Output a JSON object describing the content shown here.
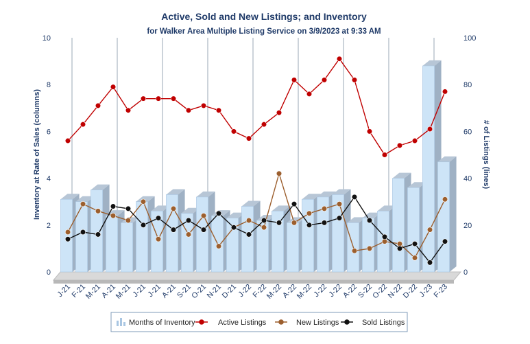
{
  "chart_data": {
    "type": "bar",
    "title": "Active, Sold and New Listings; and Inventory",
    "subtitle": "for Walker Area Multiple Listing Service on 3/9/2023 at 9:33 AM",
    "ylabel_left": "Inventory at Rate of Sales (columns)",
    "ylabel_right": "# of Listings (lines)",
    "ylim_left": [
      0,
      10
    ],
    "ylim_right": [
      0,
      100
    ],
    "yticks_left": [
      "0",
      "2",
      "4",
      "6",
      "8",
      "10"
    ],
    "yticks_right": [
      "0",
      "20",
      "40",
      "60",
      "80",
      "100"
    ],
    "categories": [
      "J-21",
      "F-21",
      "M-21",
      "A-21",
      "M-21",
      "J-21",
      "J-21",
      "A-21",
      "S-21",
      "O-21",
      "N-21",
      "D-21",
      "J-22",
      "F-22",
      "M-22",
      "A-22",
      "M-22",
      "J-22",
      "J-22",
      "A-22",
      "S-22",
      "O-22",
      "N-22",
      "D-22",
      "J-23",
      "F-23"
    ],
    "legend_position": "bottom",
    "series": [
      {
        "name": "Months of Inventory",
        "kind": "column",
        "axis": "left",
        "color": "#cde4f7",
        "values": [
          3.1,
          3.0,
          3.5,
          2.4,
          2.1,
          3.0,
          2.6,
          3.3,
          2.5,
          3.2,
          2.4,
          2.3,
          2.8,
          2.2,
          2.6,
          2.1,
          3.1,
          3.2,
          3.3,
          2.1,
          2.3,
          2.6,
          4.0,
          3.6,
          8.8,
          4.7
        ]
      },
      {
        "name": "Active Listings",
        "kind": "line",
        "axis": "right",
        "color": "#c00000",
        "values": [
          56,
          63,
          71,
          79,
          69,
          74,
          74,
          74,
          69,
          71,
          69,
          60,
          57,
          63,
          68,
          82,
          76,
          82,
          91,
          82,
          60,
          50,
          54,
          56,
          61,
          77
        ]
      },
      {
        "name": "New Listings",
        "kind": "line",
        "axis": "right",
        "color": "#9c5f2e",
        "values": [
          17,
          29,
          26,
          24,
          22,
          30,
          14,
          27,
          16,
          24,
          11,
          19,
          22,
          19,
          42,
          21,
          25,
          27,
          29,
          9,
          10,
          13,
          12,
          6,
          18,
          31
        ]
      },
      {
        "name": "Sold Listings",
        "kind": "line",
        "axis": "right",
        "color": "#111111",
        "values": [
          14,
          17,
          16,
          28,
          27,
          20,
          23,
          18,
          22,
          18,
          25,
          19,
          16,
          22,
          21,
          29,
          20,
          21,
          23,
          32,
          22,
          15,
          10,
          12,
          4,
          13
        ]
      }
    ],
    "grid": "vertical lines at January and quarter marks"
  }
}
